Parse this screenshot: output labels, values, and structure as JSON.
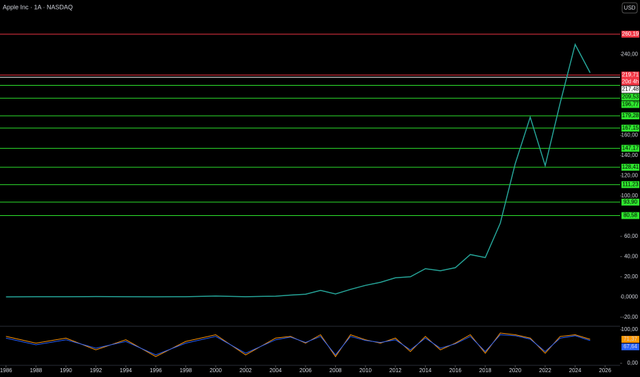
{
  "chart_data": {
    "type": "line",
    "title": "Apple Inc · 1A · NASDAQ",
    "currency": "USD",
    "x": [
      1986,
      1988,
      1990,
      1992,
      1994,
      1996,
      1998,
      2000,
      2002,
      2004,
      2005,
      2006,
      2007,
      2008,
      2009,
      2010,
      2011,
      2012,
      2013,
      2014,
      2015,
      2016,
      2017,
      2018,
      2019,
      2020,
      2021,
      2022,
      2023,
      2024,
      2025
    ],
    "values": [
      0.1,
      0.3,
      0.3,
      0.4,
      0.3,
      0.2,
      0.3,
      0.9,
      0.3,
      0.8,
      1.9,
      2.7,
      6.5,
      3,
      7.5,
      11.5,
      14.5,
      19,
      20,
      28,
      26,
      29,
      42,
      39,
      73,
      132,
      178,
      130,
      192,
      250,
      222
    ],
    "color": "#26a69a",
    "xlim": [
      1985.6,
      2027
    ],
    "xticks": [
      1986,
      1988,
      1990,
      1992,
      1994,
      1996,
      1998,
      2000,
      2002,
      2004,
      2006,
      2008,
      2010,
      2012,
      2014,
      2016,
      2018,
      2020,
      2022,
      2024,
      2026
    ],
    "ylim": [
      -29,
      294
    ],
    "yticks": [
      {
        "value": -20,
        "label": "-20,00"
      },
      {
        "value": 0,
        "label": "0,0000"
      },
      {
        "value": 20,
        "label": "20,00"
      },
      {
        "value": 40,
        "label": "40,00"
      },
      {
        "value": 60,
        "label": "60,00"
      },
      {
        "value": 100,
        "label": "100,00"
      },
      {
        "value": 120,
        "label": "120,00"
      },
      {
        "value": 140,
        "label": "140,00"
      },
      {
        "value": 160,
        "label": "160,00"
      },
      {
        "value": 240,
        "label": "240,00"
      }
    ],
    "levels": {
      "values": [
        260.19,
        219.71,
        217.48,
        209.53,
        196.77,
        179.28,
        167.15,
        147.17,
        128.41,
        111.23,
        93.9,
        80.58
      ],
      "value_labels": [
        "260,19",
        "219,71",
        "217,48",
        "209,53",
        "196,77",
        "179,28",
        "167,15",
        "147,17",
        "128,41",
        "111,23",
        "93,90",
        "80,58"
      ],
      "colors": [
        "#f23645",
        "#f23645",
        "#ffffff",
        "#2ee62e",
        "#2ee62e",
        "#2ee62e",
        "#2ee62e",
        "#2ee62e",
        "#2ee62e",
        "#2ee62e",
        "#2ee62e",
        "#2ee62e"
      ]
    },
    "countdown": "20d 4h",
    "rsi": {
      "ylim": [
        0,
        100
      ],
      "yticks": [
        {
          "value": 100,
          "label": "100,00"
        },
        {
          "value": 0,
          "label": "0,00"
        }
      ],
      "values": [
        80,
        60,
        75,
        40,
        70,
        20,
        65,
        85,
        25,
        75,
        80,
        60,
        85,
        20,
        85,
        70,
        60,
        75,
        35,
        80,
        40,
        60,
        85,
        30,
        90,
        85,
        75,
        30,
        80,
        85,
        71.37
      ],
      "value_labels_last": "71,37",
      "color": "#ff9800",
      "signal": [
        75,
        55,
        70,
        45,
        65,
        25,
        60,
        80,
        30,
        70,
        78,
        62,
        80,
        25,
        80,
        68,
        62,
        70,
        40,
        75,
        45,
        58,
        80,
        35,
        85,
        82,
        72,
        35,
        75,
        82,
        67.64
      ],
      "signal_label_last": "67,64",
      "signal_color": "#2962ff"
    }
  }
}
